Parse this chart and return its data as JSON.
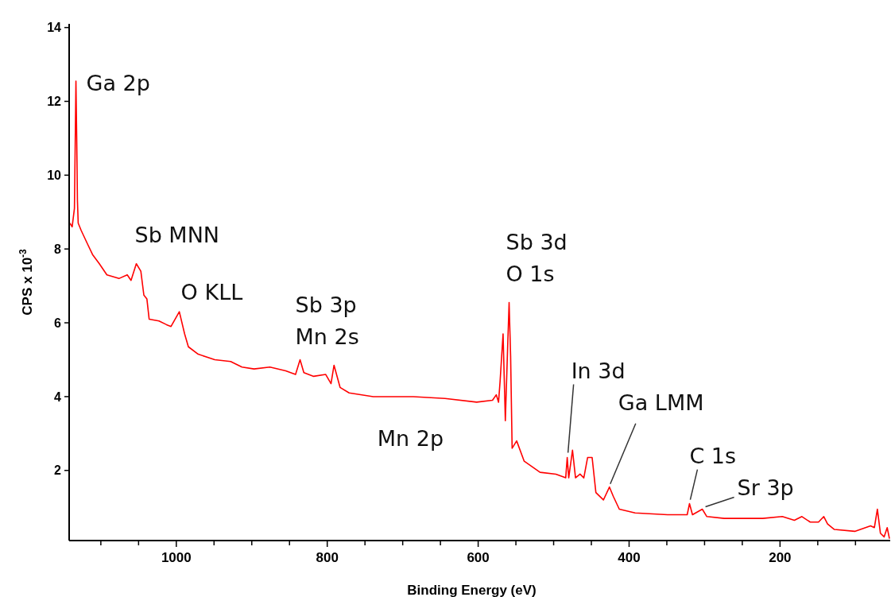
{
  "chart_data": {
    "type": "line",
    "xlabel": "Binding Energy (eV)",
    "ylabel": "CPS x 10$^{-3}$",
    "xlim": [
      1142,
      54
    ],
    "ylim": [
      0.1,
      14.1
    ],
    "xticks": [
      {
        "value": 1100,
        "label": null
      },
      {
        "value": 1050,
        "label": null
      },
      1000,
      {
        "value": 950,
        "label": null
      },
      {
        "value": 900,
        "label": null
      },
      {
        "value": 850,
        "label": null
      },
      800,
      {
        "value": 750,
        "label": null
      },
      {
        "value": 700,
        "label": null
      },
      {
        "value": 650,
        "label": null
      },
      600,
      {
        "value": 550,
        "label": null
      },
      {
        "value": 500,
        "label": null
      },
      {
        "value": 450,
        "label": null
      },
      400,
      {
        "value": 350,
        "label": null
      },
      {
        "value": 300,
        "label": null
      },
      {
        "value": 250,
        "label": null
      },
      200,
      {
        "value": 150,
        "label": null
      },
      {
        "value": 100,
        "label": null
      }
    ],
    "yticks": [
      2,
      4,
      6,
      8,
      10,
      12,
      14
    ],
    "grid": false,
    "marker": "none",
    "line_style": "solid",
    "series": [
      {
        "color": "#ff0000",
        "x": [
          1141,
          1138,
          1135,
          1133,
          1132,
          1131,
          1130,
          1126,
          1118,
          1111,
          1102,
          1092,
          1076,
          1065,
          1060,
          1053,
          1047,
          1043,
          1039,
          1036,
          1023,
          1013,
          1007,
          996,
          989,
          984,
          971,
          949,
          928,
          913,
          897,
          876,
          855,
          842,
          836,
          831,
          818,
          802,
          795,
          791,
          783,
          771,
          739,
          686,
          644,
          602,
          581,
          576,
          573,
          571,
          567,
          564,
          561,
          559,
          557,
          555,
          549,
          539,
          518,
          497,
          484,
          482,
          480,
          475,
          471,
          465,
          460,
          455,
          449,
          444,
          434,
          426,
          421,
          413,
          392,
          349,
          323,
          320,
          316,
          303,
          297,
          274,
          223,
          197,
          181,
          171,
          160,
          149,
          142,
          137,
          128,
          101,
          80,
          75,
          71,
          67,
          62,
          58,
          55
        ],
        "values": [
          8.7,
          8.6,
          9.1,
          12.55,
          11.05,
          9.3,
          8.7,
          8.5,
          8.15,
          7.85,
          7.6,
          7.3,
          7.2,
          7.3,
          7.15,
          7.6,
          7.4,
          6.75,
          6.65,
          6.1,
          6.05,
          5.95,
          5.9,
          6.3,
          5.7,
          5.35,
          5.15,
          5.0,
          4.95,
          4.8,
          4.75,
          4.8,
          4.7,
          4.6,
          5.0,
          4.65,
          4.55,
          4.6,
          4.35,
          4.85,
          4.25,
          4.1,
          4.0,
          4.0,
          3.95,
          3.85,
          3.9,
          4.05,
          3.85,
          4.4,
          5.7,
          3.35,
          5.3,
          6.55,
          5.1,
          2.6,
          2.8,
          2.25,
          1.95,
          1.9,
          1.8,
          2.35,
          1.8,
          2.55,
          1.8,
          1.9,
          1.8,
          2.35,
          2.35,
          1.4,
          1.2,
          1.55,
          1.3,
          0.95,
          0.85,
          0.8,
          0.8,
          1.1,
          0.8,
          0.95,
          0.75,
          0.7,
          0.7,
          0.75,
          0.65,
          0.75,
          0.6,
          0.6,
          0.75,
          0.55,
          0.4,
          0.35,
          0.5,
          0.45,
          0.95,
          0.3,
          0.2,
          0.45,
          0.15
        ]
      }
    ],
    "annotations": [
      {
        "text": "Ga 2p",
        "x": 1133,
        "y": 12.55
      },
      {
        "text": "Sb MNN",
        "x": 1053,
        "y": 7.6
      },
      {
        "text": "O KLL",
        "x": 996,
        "y": 6.3
      },
      {
        "text": "Sb 3p\nMn 2s",
        "x": 836,
        "y": 5.0
      },
      {
        "text": "Sb 3d\nO 1s",
        "x": 559,
        "y": 6.55
      },
      {
        "text": "Mn 2p",
        "x": 644,
        "y": 3.95
      },
      {
        "text": "In 3d",
        "x": 482,
        "y": 2.35
      },
      {
        "text": "Ga LMM",
        "x": 426,
        "y": 1.55
      },
      {
        "text": "C 1s",
        "x": 320,
        "y": 1.1
      },
      {
        "text": "Sr 3p",
        "x": 303,
        "y": 0.95
      }
    ]
  }
}
